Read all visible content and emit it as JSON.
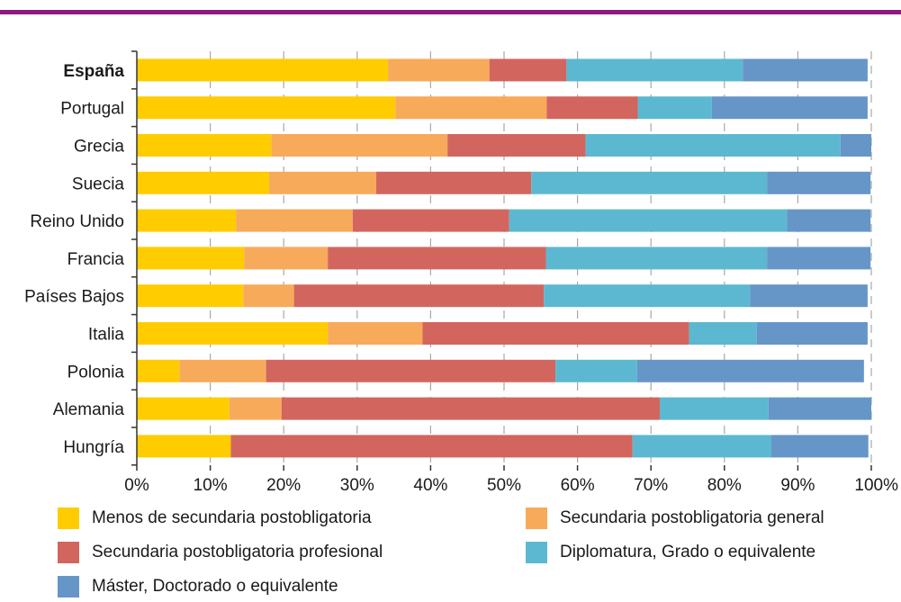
{
  "colors": {
    "top_rule": "#8e1a7e",
    "axis": "#333333",
    "grid": "#a8a8a8"
  },
  "chart_data": {
    "type": "bar",
    "orientation": "horizontal",
    "stacked": true,
    "title": "",
    "xlabel": "",
    "ylabel": "",
    "xlim": [
      0,
      100
    ],
    "x_ticks": [
      "0%",
      "10%",
      "20%",
      "30%",
      "40%",
      "50%",
      "60%",
      "70%",
      "80%",
      "90%",
      "100%"
    ],
    "grid": "vertical-dashed",
    "legend_position": "bottom",
    "categories": [
      "España",
      "Portugal",
      "Grecia",
      "Suecia",
      "Reino Unido",
      "Francia",
      "Países Bajos",
      "Italia",
      "Polonia",
      "Alemania",
      "Hungría"
    ],
    "highlight_category": "España",
    "series": [
      {
        "name": "Menos de secundaria postobligatoria",
        "color": "#ffcc00",
        "values": [
          34.2,
          35.2,
          18.3,
          18.0,
          13.5,
          14.6,
          14.5,
          26.0,
          5.8,
          12.6,
          12.8
        ]
      },
      {
        "name": "Secundaria postobligatoria general",
        "color": "#f7aa5a",
        "values": [
          13.8,
          20.6,
          24.0,
          14.6,
          15.9,
          11.4,
          6.9,
          12.9,
          11.8,
          7.1,
          0.0
        ]
      },
      {
        "name": "Secundaria postobligatoria profesional",
        "color": "#d2665e",
        "values": [
          10.5,
          12.4,
          18.8,
          21.1,
          21.3,
          29.7,
          34.0,
          36.3,
          39.4,
          51.5,
          54.7
        ]
      },
      {
        "name": "Diplomatura, Grado o equivalente",
        "color": "#5cb8d1",
        "values": [
          24.0,
          10.1,
          34.7,
          32.1,
          37.8,
          30.1,
          28.1,
          9.2,
          11.1,
          14.8,
          18.9
        ]
      },
      {
        "name": "Máster, Doctorado o equivalente",
        "color": "#6596c7",
        "values": [
          17.0,
          21.2,
          4.2,
          14.1,
          11.4,
          14.1,
          16.0,
          15.1,
          30.9,
          14.0,
          13.2
        ]
      }
    ]
  }
}
